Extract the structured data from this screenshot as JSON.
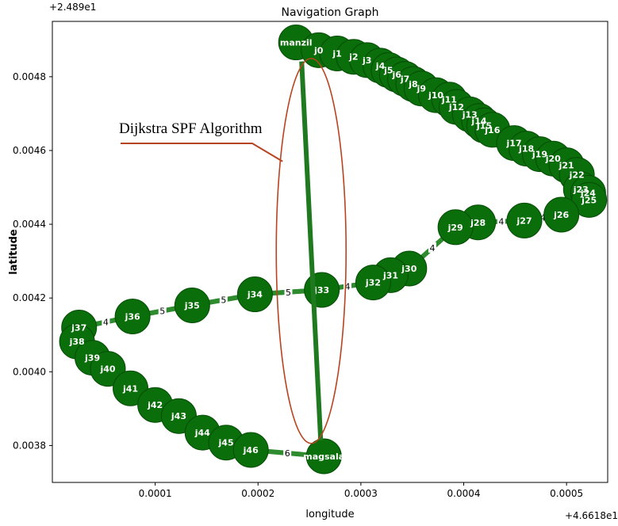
{
  "chart_data": {
    "type": "scatter",
    "title": "Navigation Graph",
    "xlabel": "longitude",
    "ylabel": "latitude",
    "x_offset_text": "+4.6618e1",
    "y_offset_text": "+2.489e1",
    "xlim": [
      0.0,
      0.00054
    ],
    "ylim": [
      0.0037,
      0.00495
    ],
    "x_ticks": [
      {
        "value": 0.0001,
        "label": "0.0001"
      },
      {
        "value": 0.0002,
        "label": "0.0002"
      },
      {
        "value": 0.0003,
        "label": "0.0003"
      },
      {
        "value": 0.0004,
        "label": "0.0004"
      },
      {
        "value": 0.0005,
        "label": "0.0005"
      }
    ],
    "y_ticks": [
      {
        "value": 0.0038,
        "label": "0.0038"
      },
      {
        "value": 0.004,
        "label": "0.0040"
      },
      {
        "value": 0.0042,
        "label": "0.0042"
      },
      {
        "value": 0.0044,
        "label": "0.0044"
      },
      {
        "value": 0.0046,
        "label": "0.0046"
      },
      {
        "value": 0.0048,
        "label": "0.0048"
      }
    ],
    "node_color": "#0a6e0a",
    "edge_color": "#2e8b2e",
    "path_color": "#1f7a1f",
    "annotation_color": "#b8441f",
    "nodes": [
      {
        "id": "manzil",
        "x": 0.000237,
        "y": 0.004893
      },
      {
        "id": "j0",
        "x": 0.000259,
        "y": 0.004872
      },
      {
        "id": "j1",
        "x": 0.000277,
        "y": 0.004863
      },
      {
        "id": "j2",
        "x": 0.000293,
        "y": 0.004854
      },
      {
        "id": "j3",
        "x": 0.000306,
        "y": 0.004845
      },
      {
        "id": "j4",
        "x": 0.000319,
        "y": 0.00483
      },
      {
        "id": "j5",
        "x": 0.000327,
        "y": 0.004818
      },
      {
        "id": "j6",
        "x": 0.000335,
        "y": 0.004806
      },
      {
        "id": "j7",
        "x": 0.000343,
        "y": 0.004794
      },
      {
        "id": "j8",
        "x": 0.000351,
        "y": 0.00478
      },
      {
        "id": "j9",
        "x": 0.000359,
        "y": 0.004768
      },
      {
        "id": "j10",
        "x": 0.000373,
        "y": 0.00475
      },
      {
        "id": "j11",
        "x": 0.000386,
        "y": 0.004738
      },
      {
        "id": "j12",
        "x": 0.000393,
        "y": 0.004718
      },
      {
        "id": "j13",
        "x": 0.000406,
        "y": 0.004698
      },
      {
        "id": "j14",
        "x": 0.000415,
        "y": 0.00468
      },
      {
        "id": "j15",
        "x": 0.00042,
        "y": 0.004668
      },
      {
        "id": "j16",
        "x": 0.000428,
        "y": 0.004656
      },
      {
        "id": "j17",
        "x": 0.000449,
        "y": 0.00462
      },
      {
        "id": "j18",
        "x": 0.000461,
        "y": 0.004605
      },
      {
        "id": "j19",
        "x": 0.000474,
        "y": 0.00459
      },
      {
        "id": "j20",
        "x": 0.000487,
        "y": 0.004578
      },
      {
        "id": "j21",
        "x": 0.0005,
        "y": 0.00456
      },
      {
        "id": "j22",
        "x": 0.00051,
        "y": 0.004534
      },
      {
        "id": "j23",
        "x": 0.000514,
        "y": 0.004495
      },
      {
        "id": "j24",
        "x": 0.000521,
        "y": 0.004485
      },
      {
        "id": "j25",
        "x": 0.000522,
        "y": 0.004466
      },
      {
        "id": "j26",
        "x": 0.000495,
        "y": 0.004426
      },
      {
        "id": "j27",
        "x": 0.000459,
        "y": 0.00441
      },
      {
        "id": "j28",
        "x": 0.000414,
        "y": 0.004405
      },
      {
        "id": "j29",
        "x": 0.000392,
        "y": 0.004392
      },
      {
        "id": "j30",
        "x": 0.000347,
        "y": 0.00428
      },
      {
        "id": "j31",
        "x": 0.000329,
        "y": 0.004262
      },
      {
        "id": "j32",
        "x": 0.000312,
        "y": 0.004242
      },
      {
        "id": "j33",
        "x": 0.000262,
        "y": 0.004222
      },
      {
        "id": "j34",
        "x": 0.000197,
        "y": 0.00421
      },
      {
        "id": "j35",
        "x": 0.000136,
        "y": 0.00418
      },
      {
        "id": "j36",
        "x": 7.8e-05,
        "y": 0.00415
      },
      {
        "id": "j37",
        "x": 2.6e-05,
        "y": 0.00412
      },
      {
        "id": "j38",
        "x": 2.4e-05,
        "y": 0.004082
      },
      {
        "id": "j39",
        "x": 3.9e-05,
        "y": 0.004038
      },
      {
        "id": "j40",
        "x": 5.4e-05,
        "y": 0.004008
      },
      {
        "id": "j41",
        "x": 7.6e-05,
        "y": 0.003955
      },
      {
        "id": "j42",
        "x": 0.0001,
        "y": 0.00391
      },
      {
        "id": "j43",
        "x": 0.000123,
        "y": 0.00388
      },
      {
        "id": "j44",
        "x": 0.000146,
        "y": 0.003835
      },
      {
        "id": "j45",
        "x": 0.000169,
        "y": 0.003808
      },
      {
        "id": "j46",
        "x": 0.000193,
        "y": 0.003788
      },
      {
        "id": "magsala",
        "x": 0.000264,
        "y": 0.003771
      }
    ],
    "edges": [
      {
        "from": "j46",
        "to": "magsala",
        "weight": "6"
      },
      {
        "from": "j37",
        "to": "j36",
        "weight": "4"
      },
      {
        "from": "j36",
        "to": "j35",
        "weight": "5"
      },
      {
        "from": "j35",
        "to": "j34",
        "weight": "5"
      },
      {
        "from": "j34",
        "to": "j33",
        "weight": "5"
      },
      {
        "from": "j33",
        "to": "j32",
        "weight": "4"
      },
      {
        "from": "j29",
        "to": "j30",
        "weight": "4"
      },
      {
        "from": "j28",
        "to": "j27",
        "weight": "4"
      },
      {
        "from": "j27",
        "to": "j26",
        "weight": "4"
      }
    ],
    "shortest_path": [
      "manzil",
      "magsala"
    ],
    "annotation": {
      "text": "Dijkstra SPF Algorithm"
    }
  }
}
